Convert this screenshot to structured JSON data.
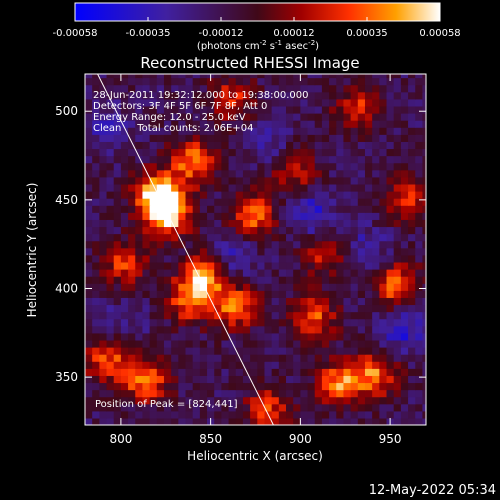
{
  "chart_data": {
    "type": "heatmap",
    "title": "Reconstructed RHESSI Image",
    "xlabel": "Heliocentric X (arcsec)",
    "ylabel": "Heliocentric Y (arcsec)",
    "xlim": [
      780,
      970
    ],
    "ylim": [
      323,
      521
    ],
    "xticks": [
      800,
      850,
      900,
      950
    ],
    "yticks": [
      350,
      400,
      450,
      500
    ],
    "colorbar": {
      "ticks": [
        "-0.00058",
        "-0.00035",
        "-0.00012",
        "0.00012",
        "0.00035",
        "0.00058"
      ],
      "range": [
        -0.00058,
        0.00058
      ],
      "unit_prefix": "(photons cm",
      "unit_sup1": "-2",
      "unit_mid": " s",
      "unit_sup2": "-1",
      "unit_end": " asec",
      "unit_sup3": "-2",
      "unit_close": ")"
    },
    "annotations": {
      "time_range": "28-Jun-2011 19:32:12.000 to 19:38:00.000",
      "detectors": "Detectors: 3F 4F 5F 6F 7F 8F, Att 0",
      "energy": "Energy Range: 12.0 - 25.0 keV",
      "clean": "Clean     Total counts: 2.06E+04",
      "peak": "Position of Peak = [824,441]"
    },
    "limb_line": [
      [
        787,
        521
      ],
      [
        885,
        323
      ]
    ],
    "hotspots": [
      {
        "x": 824,
        "y": 441,
        "v": 0.00058
      },
      {
        "x": 818,
        "y": 452,
        "v": 0.00045
      },
      {
        "x": 838,
        "y": 470,
        "v": 0.00038
      },
      {
        "x": 872,
        "y": 440,
        "v": 0.00036
      },
      {
        "x": 845,
        "y": 405,
        "v": 0.0004
      },
      {
        "x": 862,
        "y": 388,
        "v": 0.00035
      },
      {
        "x": 905,
        "y": 382,
        "v": 0.00032
      },
      {
        "x": 920,
        "y": 345,
        "v": 0.00038
      },
      {
        "x": 940,
        "y": 350,
        "v": 0.00034
      },
      {
        "x": 812,
        "y": 347,
        "v": 0.0004
      },
      {
        "x": 790,
        "y": 358,
        "v": 0.0003
      },
      {
        "x": 836,
        "y": 392,
        "v": 0.00033
      },
      {
        "x": 952,
        "y": 400,
        "v": 0.00036
      },
      {
        "x": 958,
        "y": 448,
        "v": 0.00025
      },
      {
        "x": 930,
        "y": 500,
        "v": 0.00024
      },
      {
        "x": 860,
        "y": 505,
        "v": 0.00022
      },
      {
        "x": 800,
        "y": 412,
        "v": 0.00026
      },
      {
        "x": 880,
        "y": 330,
        "v": 0.00026
      },
      {
        "x": 895,
        "y": 465,
        "v": 0.0002
      },
      {
        "x": 912,
        "y": 418,
        "v": 0.00022
      }
    ],
    "coldspots": [
      {
        "x": 905,
        "y": 440,
        "v": -0.0004
      },
      {
        "x": 860,
        "y": 415,
        "v": -0.00035
      },
      {
        "x": 955,
        "y": 375,
        "v": -0.0004
      },
      {
        "x": 790,
        "y": 490,
        "v": -0.0003
      },
      {
        "x": 935,
        "y": 420,
        "v": -0.00032
      },
      {
        "x": 880,
        "y": 480,
        "v": -0.00028
      },
      {
        "x": 800,
        "y": 380,
        "v": -0.00025
      }
    ]
  },
  "footer": {
    "timestamp": "12-May-2022 05:34"
  },
  "colors": {
    "background": "#000000",
    "text": "#ffffff"
  }
}
